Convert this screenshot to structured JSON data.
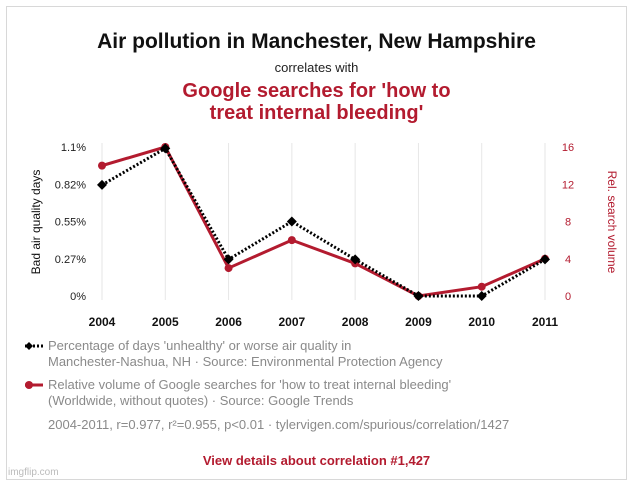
{
  "title": "Air pollution in Manchester, New Hampshire",
  "connector": "correlates with",
  "subtitle_line1": "Google searches for 'how to",
  "subtitle_line2": "treat internal bleeding'",
  "chart_data": {
    "type": "line",
    "x": [
      2004,
      2005,
      2006,
      2007,
      2008,
      2009,
      2010,
      2011
    ],
    "categories": [
      "2004",
      "2005",
      "2006",
      "2007",
      "2008",
      "2009",
      "2010",
      "2011"
    ],
    "series": [
      {
        "name": "Percentage of days 'unhealthy' or worse air quality",
        "axis": "left",
        "color": "#000000",
        "style": "dotted",
        "marker": "diamond",
        "values": [
          0.82,
          1.09,
          0.27,
          0.55,
          0.27,
          0.0,
          0.0,
          0.27
        ]
      },
      {
        "name": "Relative volume of Google searches for 'how to treat internal bleeding'",
        "axis": "right",
        "color": "#b31b2f",
        "style": "solid",
        "marker": "circle",
        "values": [
          14,
          16,
          3,
          6,
          3.5,
          0,
          1,
          4
        ]
      }
    ],
    "ylim_left": [
      0,
      1.1
    ],
    "ylim_right": [
      0,
      16
    ],
    "yticks_left": [
      "0%",
      "0.27%",
      "0.55%",
      "0.82%",
      "1.1%"
    ],
    "yticks_left_values": [
      0,
      0.275,
      0.55,
      0.825,
      1.1
    ],
    "yticks_right": [
      "0",
      "4",
      "8",
      "12",
      "16"
    ],
    "yticks_right_values": [
      0,
      4,
      8,
      12,
      16
    ],
    "ylabel_left": "Bad air quality days",
    "ylabel_right": "Rel. search volume",
    "grid": "vertical"
  },
  "legend": {
    "item1_line1": "Percentage of days 'unhealthy' or worse air quality in",
    "item1_line2": "Manchester-Nashua, NH · Source: Environmental Protection Agency",
    "item2_line1": "Relative volume of Google searches for 'how to treat internal bleeding'",
    "item2_line2": "(Worldwide, without quotes) · Source: Google Trends"
  },
  "stats": "2004-2011, r=0.977, r²=0.955, p<0.01 · tylervigen.com/spurious/correlation/1427",
  "details_link": "View details about correlation #1,427",
  "watermark": "imgflip.com",
  "colors": {
    "accent": "#b31b2f",
    "primary_line": "#000000",
    "grid": "#e6e6e6"
  }
}
